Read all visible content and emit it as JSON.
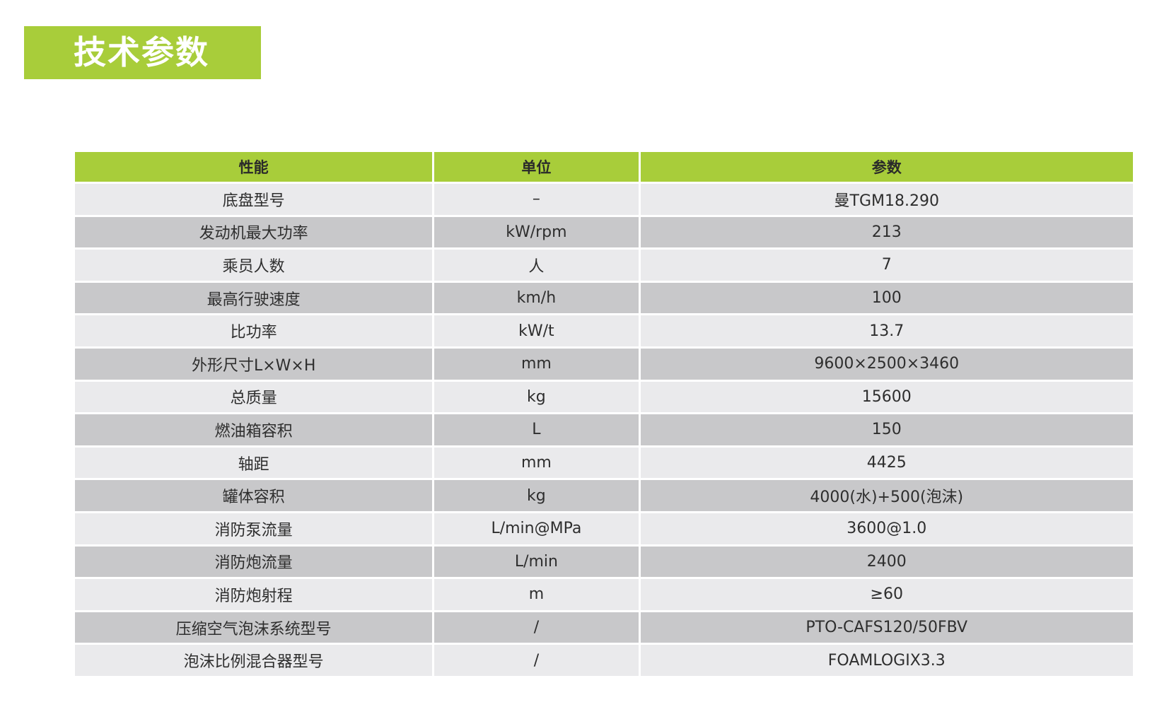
{
  "title": "技术参数",
  "colors": {
    "accent": "#a8cd3a",
    "row_light": "#eaeaec",
    "row_dark": "#c8c8ca"
  },
  "table": {
    "headers": [
      "性能",
      "单位",
      "参数"
    ],
    "rows": [
      [
        "底盘型号",
        "–",
        "曼TGM18.290"
      ],
      [
        "发动机最大功率",
        "kW/rpm",
        "213"
      ],
      [
        "乘员人数",
        "人",
        "7"
      ],
      [
        "最高行驶速度",
        "km/h",
        "100"
      ],
      [
        "比功率",
        "kW/t",
        "13.7"
      ],
      [
        "外形尺寸L×W×H",
        "mm",
        "9600×2500×3460"
      ],
      [
        "总质量",
        "kg",
        "15600"
      ],
      [
        "燃油箱容积",
        "L",
        "150"
      ],
      [
        "轴距",
        "mm",
        "4425"
      ],
      [
        "罐体容积",
        "kg",
        "4000(水)+500(泡沫)"
      ],
      [
        "消防泵流量",
        "L/min@MPa",
        "3600@1.0"
      ],
      [
        "消防炮流量",
        "L/min",
        "2400"
      ],
      [
        "消防炮射程",
        "m",
        "≥60"
      ],
      [
        "压缩空气泡沫系统型号",
        "/",
        "PTO-CAFS120/50FBV"
      ],
      [
        "泡沫比例混合器型号",
        "/",
        "FOAMLOGIX3.3"
      ]
    ]
  }
}
